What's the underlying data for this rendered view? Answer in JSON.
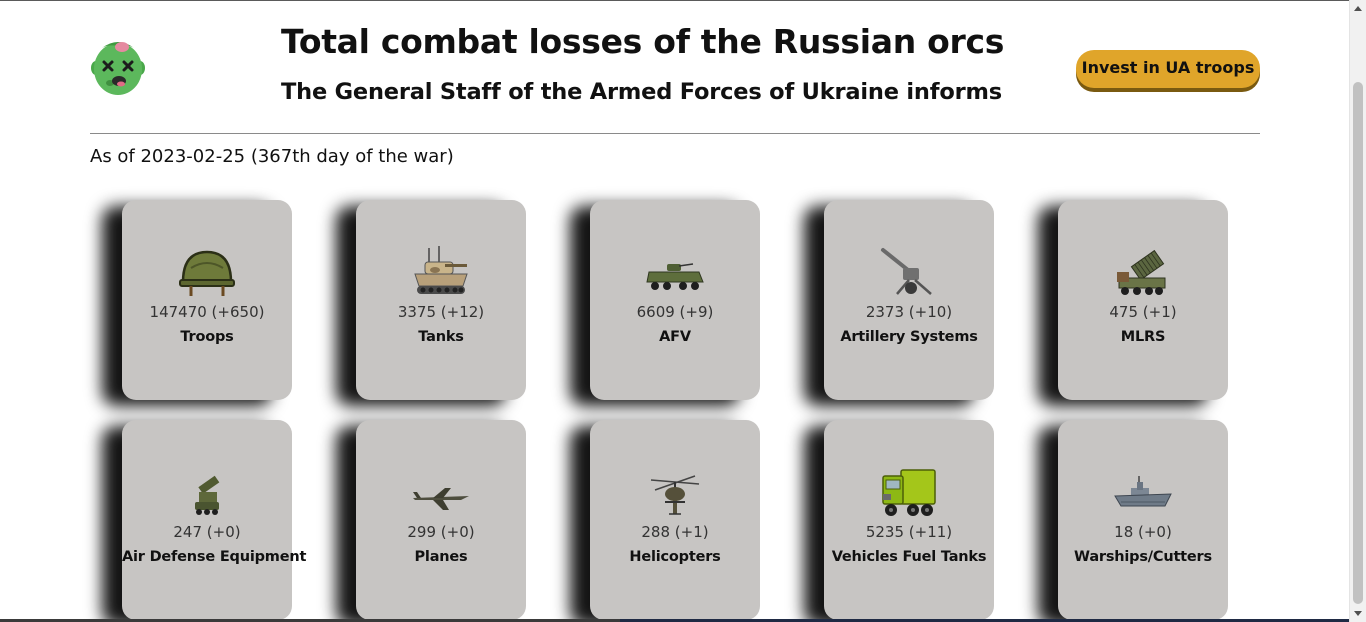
{
  "header": {
    "title": "Total combat losses of the Russian orcs",
    "subtitle": "The General Staff of the Armed Forces of Ukraine informs",
    "invest_label": "Invest in UA troops",
    "logo_icon": "zombie-head-icon"
  },
  "status": {
    "as_of": "As of 2023-02-25 (367th day of the war)"
  },
  "cards": [
    {
      "value": "147470 (+650)",
      "label": "Troops",
      "icon": "helmet-icon"
    },
    {
      "value": "3375 (+12)",
      "label": "Tanks",
      "icon": "tank-icon"
    },
    {
      "value": "6609 (+9)",
      "label": "AFV",
      "icon": "armored-vehicle-icon"
    },
    {
      "value": "2373 (+10)",
      "label": "Artillery Systems",
      "icon": "artillery-icon"
    },
    {
      "value": "475 (+1)",
      "label": "MLRS",
      "icon": "mlrs-icon"
    },
    {
      "value": "247 (+0)",
      "label": "Air Defense Equipment",
      "icon": "air-defense-icon"
    },
    {
      "value": "299 (+0)",
      "label": "Planes",
      "icon": "plane-icon"
    },
    {
      "value": "288 (+1)",
      "label": "Helicopters",
      "icon": "helicopter-icon"
    },
    {
      "value": "5235 (+11)",
      "label": "Vehicles Fuel Tanks",
      "icon": "truck-icon"
    },
    {
      "value": "18 (+0)",
      "label": "Warships/Cutters",
      "icon": "warship-icon"
    }
  ],
  "colors": {
    "card_background": "#c7c5c3",
    "invest_button": "#e0a52a",
    "zombie_skin": "#5cb85c"
  }
}
